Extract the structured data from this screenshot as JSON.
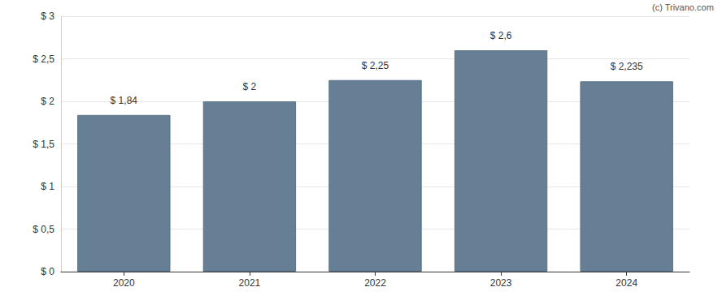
{
  "chart_data": {
    "type": "bar",
    "categories": [
      "2020",
      "2021",
      "2022",
      "2023",
      "2024"
    ],
    "values": [
      1.84,
      2,
      2.25,
      2.6,
      2.235
    ],
    "value_labels": [
      "$ 1,84",
      "$ 2",
      "$ 2,25",
      "$ 2,6",
      "$ 2,235"
    ],
    "data_labels": true,
    "color": "#667f94",
    "ylim": [
      0,
      3
    ],
    "yticks": [
      {
        "value": 0,
        "label": "$ 0"
      },
      {
        "value": 0.5,
        "label": "$ 0,5"
      },
      {
        "value": 1,
        "label": "$ 1"
      },
      {
        "value": 1.5,
        "label": "$ 1,5"
      },
      {
        "value": 2,
        "label": "$ 2"
      },
      {
        "value": 2.5,
        "label": "$ 2,5"
      },
      {
        "value": 3,
        "label": "$ 3"
      }
    ],
    "grid": true,
    "annotations": [
      "(c) Trivano.com"
    ]
  }
}
